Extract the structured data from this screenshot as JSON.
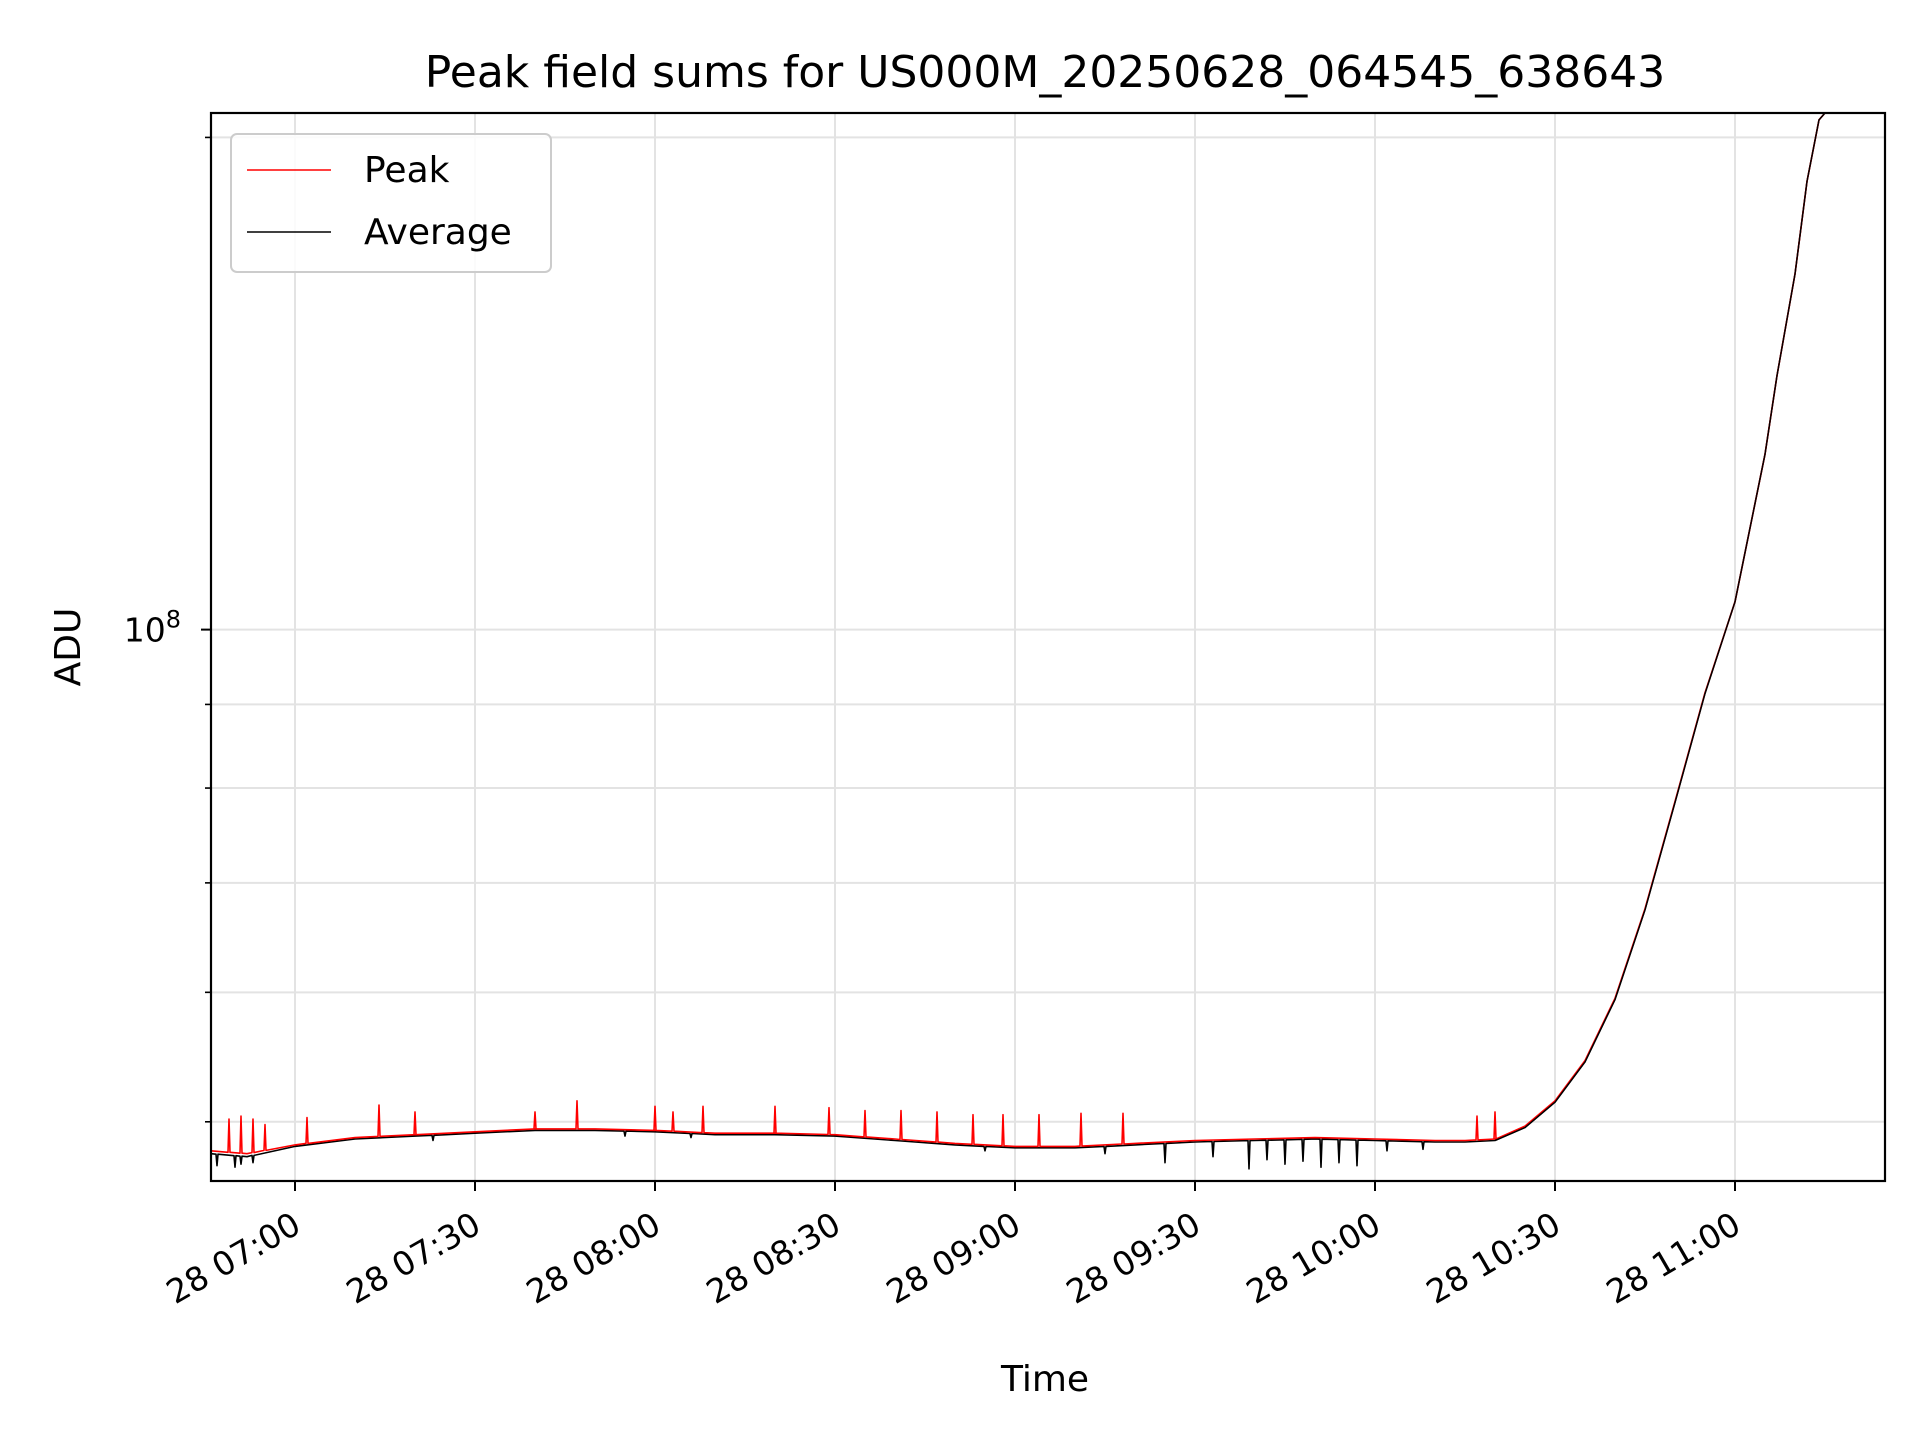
{
  "chart_data": {
    "type": "line",
    "title": "Peak field sums for US000M_20250628_064545_638643",
    "xlabel": "Time",
    "ylabel": "ADU",
    "x_scale": "time",
    "y_scale": "log",
    "xlim": [
      "2025-06-28T06:46:00",
      "2025-06-28T11:25:00"
    ],
    "ylim": [
      46000000.0,
      207000000.0
    ],
    "x_ticks": [
      {
        "time": "2025-06-28T07:00:00",
        "label": "28 07:00"
      },
      {
        "time": "2025-06-28T07:30:00",
        "label": "28 07:30"
      },
      {
        "time": "2025-06-28T08:00:00",
        "label": "28 08:00"
      },
      {
        "time": "2025-06-28T08:30:00",
        "label": "28 08:30"
      },
      {
        "time": "2025-06-28T09:00:00",
        "label": "28 09:00"
      },
      {
        "time": "2025-06-28T09:30:00",
        "label": "28 09:30"
      },
      {
        "time": "2025-06-28T10:00:00",
        "label": "28 10:00"
      },
      {
        "time": "2025-06-28T10:30:00",
        "label": "28 10:30"
      },
      {
        "time": "2025-06-28T11:00:00",
        "label": "28 11:00"
      }
    ],
    "y_major_ticks": [
      {
        "value": 100000000,
        "label": "10^8"
      }
    ],
    "y_minor_ticks": [
      50000000.0,
      60000000.0,
      70000000.0,
      80000000.0,
      90000000.0,
      200000000.0
    ],
    "grid": true,
    "legend_position": "top-left",
    "series": [
      {
        "name": "Peak",
        "color": "#ff0000",
        "points": [
          [
            "2025-06-28T06:46:00",
            48000000.0
          ],
          [
            "2025-06-28T06:52:00",
            47800000.0
          ],
          [
            "2025-06-28T07:00:00",
            48400000.0
          ],
          [
            "2025-06-28T07:10:00",
            48900000.0
          ],
          [
            "2025-06-28T07:20:00",
            49100000.0
          ],
          [
            "2025-06-28T07:30:00",
            49300000.0
          ],
          [
            "2025-06-28T07:40:00",
            49500000.0
          ],
          [
            "2025-06-28T07:50:00",
            49500000.0
          ],
          [
            "2025-06-28T08:00:00",
            49400000.0
          ],
          [
            "2025-06-28T08:10:00",
            49200000.0
          ],
          [
            "2025-06-28T08:20:00",
            49200000.0
          ],
          [
            "2025-06-28T08:30:00",
            49100000.0
          ],
          [
            "2025-06-28T08:40:00",
            48800000.0
          ],
          [
            "2025-06-28T08:50:00",
            48500000.0
          ],
          [
            "2025-06-28T09:00:00",
            48300000.0
          ],
          [
            "2025-06-28T09:10:00",
            48300000.0
          ],
          [
            "2025-06-28T09:20:00",
            48500000.0
          ],
          [
            "2025-06-28T09:30:00",
            48700000.0
          ],
          [
            "2025-06-28T09:40:00",
            48800000.0
          ],
          [
            "2025-06-28T09:50:00",
            48900000.0
          ],
          [
            "2025-06-28T10:00:00",
            48800000.0
          ],
          [
            "2025-06-28T10:10:00",
            48700000.0
          ],
          [
            "2025-06-28T10:15:00",
            48700000.0
          ],
          [
            "2025-06-28T10:20:00",
            48800000.0
          ],
          [
            "2025-06-28T10:25:00",
            49700000.0
          ],
          [
            "2025-06-28T10:30:00",
            51500000.0
          ],
          [
            "2025-06-28T10:35:00",
            54500000.0
          ],
          [
            "2025-06-28T10:40:00",
            59500000.0
          ],
          [
            "2025-06-28T10:45:00",
            67500000.0
          ],
          [
            "2025-06-28T10:50:00",
            78500000.0
          ],
          [
            "2025-06-28T10:55:00",
            91500000.0
          ],
          [
            "2025-06-28T11:00:00",
            104000000.0
          ],
          [
            "2025-06-28T11:05:00",
            128000000.0
          ],
          [
            "2025-06-28T11:07:00",
            143000000.0
          ],
          [
            "2025-06-28T11:10:00",
            165000000.0
          ],
          [
            "2025-06-28T11:12:00",
            188000000.0
          ],
          [
            "2025-06-28T11:14:00",
            205000000.0
          ],
          [
            "2025-06-28T11:15:00",
            207000000.0
          ]
        ],
        "spikes": [
          [
            "2025-06-28T06:49:00",
            50200000.0
          ],
          [
            "2025-06-28T06:51:00",
            50400000.0
          ],
          [
            "2025-06-28T06:53:00",
            50200000.0
          ],
          [
            "2025-06-28T06:55:00",
            49800000.0
          ],
          [
            "2025-06-28T07:02:00",
            50300000.0
          ],
          [
            "2025-06-28T07:14:00",
            51200000.0
          ],
          [
            "2025-06-28T07:20:00",
            50700000.0
          ],
          [
            "2025-06-28T07:40:00",
            50700000.0
          ],
          [
            "2025-06-28T07:47:00",
            51500000.0
          ],
          [
            "2025-06-28T08:00:00",
            51100000.0
          ],
          [
            "2025-06-28T08:03:00",
            50700000.0
          ],
          [
            "2025-06-28T08:08:00",
            51100000.0
          ],
          [
            "2025-06-28T08:20:00",
            51100000.0
          ],
          [
            "2025-06-28T08:29:00",
            51000000.0
          ],
          [
            "2025-06-28T08:35:00",
            50800000.0
          ],
          [
            "2025-06-28T08:41:00",
            50800000.0
          ],
          [
            "2025-06-28T08:47:00",
            50700000.0
          ],
          [
            "2025-06-28T08:53:00",
            50500000.0
          ],
          [
            "2025-06-28T08:58:00",
            50500000.0
          ],
          [
            "2025-06-28T09:04:00",
            50500000.0
          ],
          [
            "2025-06-28T09:11:00",
            50600000.0
          ],
          [
            "2025-06-28T09:18:00",
            50600000.0
          ],
          [
            "2025-06-28T10:17:00",
            50400000.0
          ],
          [
            "2025-06-28T10:20:00",
            50700000.0
          ]
        ]
      },
      {
        "name": "Average",
        "color": "#000000",
        "points": [
          [
            "2025-06-28T06:46:00",
            47800000.0
          ],
          [
            "2025-06-28T06:52:00",
            47600000.0
          ],
          [
            "2025-06-28T07:00:00",
            48300000.0
          ],
          [
            "2025-06-28T07:10:00",
            48800000.0
          ],
          [
            "2025-06-28T07:20:00",
            49000000.0
          ],
          [
            "2025-06-28T07:30:00",
            49200000.0
          ],
          [
            "2025-06-28T07:40:00",
            49400000.0
          ],
          [
            "2025-06-28T07:50:00",
            49400000.0
          ],
          [
            "2025-06-28T08:00:00",
            49300000.0
          ],
          [
            "2025-06-28T08:10:00",
            49100000.0
          ],
          [
            "2025-06-28T08:20:00",
            49100000.0
          ],
          [
            "2025-06-28T08:30:00",
            49000000.0
          ],
          [
            "2025-06-28T08:40:00",
            48700000.0
          ],
          [
            "2025-06-28T08:50:00",
            48400000.0
          ],
          [
            "2025-06-28T09:00:00",
            48200000.0
          ],
          [
            "2025-06-28T09:10:00",
            48200000.0
          ],
          [
            "2025-06-28T09:20:00",
            48400000.0
          ],
          [
            "2025-06-28T09:30:00",
            48600000.0
          ],
          [
            "2025-06-28T09:40:00",
            48700000.0
          ],
          [
            "2025-06-28T09:50:00",
            48800000.0
          ],
          [
            "2025-06-28T10:00:00",
            48700000.0
          ],
          [
            "2025-06-28T10:10:00",
            48600000.0
          ],
          [
            "2025-06-28T10:15:00",
            48600000.0
          ],
          [
            "2025-06-28T10:20:00",
            48700000.0
          ],
          [
            "2025-06-28T10:25:00",
            49600000.0
          ],
          [
            "2025-06-28T10:30:00",
            51400000.0
          ],
          [
            "2025-06-28T10:35:00",
            54400000.0
          ],
          [
            "2025-06-28T10:40:00",
            59400000.0
          ],
          [
            "2025-06-28T10:45:00",
            67400000.0
          ],
          [
            "2025-06-28T10:50:00",
            78400000.0
          ],
          [
            "2025-06-28T10:55:00",
            91400000.0
          ],
          [
            "2025-06-28T11:00:00",
            104000000.0
          ],
          [
            "2025-06-28T11:05:00",
            128000000.0
          ],
          [
            "2025-06-28T11:07:00",
            143000000.0
          ],
          [
            "2025-06-28T11:10:00",
            165000000.0
          ],
          [
            "2025-06-28T11:12:00",
            188000000.0
          ],
          [
            "2025-06-28T11:14:00",
            205000000.0
          ],
          [
            "2025-06-28T11:15:00",
            207000000.0
          ]
        ],
        "dips": [
          [
            "2025-06-28T06:47:00",
            47000000.0
          ],
          [
            "2025-06-28T06:50:00",
            46900000.0
          ],
          [
            "2025-06-28T06:51:00",
            47100000.0
          ],
          [
            "2025-06-28T06:53:00",
            47200000.0
          ],
          [
            "2025-06-28T07:23:00",
            48700000.0
          ],
          [
            "2025-06-28T07:55:00",
            49000000.0
          ],
          [
            "2025-06-28T08:06:00",
            48900000.0
          ],
          [
            "2025-06-28T08:55:00",
            48000000.0
          ],
          [
            "2025-06-28T09:15:00",
            47800000.0
          ],
          [
            "2025-06-28T09:25:00",
            47200000.0
          ],
          [
            "2025-06-28T09:33:00",
            47600000.0
          ],
          [
            "2025-06-28T09:39:00",
            46800000.0
          ],
          [
            "2025-06-28T09:42:00",
            47400000.0
          ],
          [
            "2025-06-28T09:45:00",
            47100000.0
          ],
          [
            "2025-06-28T09:48:00",
            47300000.0
          ],
          [
            "2025-06-28T09:51:00",
            46900000.0
          ],
          [
            "2025-06-28T09:54:00",
            47200000.0
          ],
          [
            "2025-06-28T09:57:00",
            47000000.0
          ],
          [
            "2025-06-28T10:02:00",
            48000000.0
          ],
          [
            "2025-06-28T10:08:00",
            48100000.0
          ]
        ]
      }
    ]
  }
}
